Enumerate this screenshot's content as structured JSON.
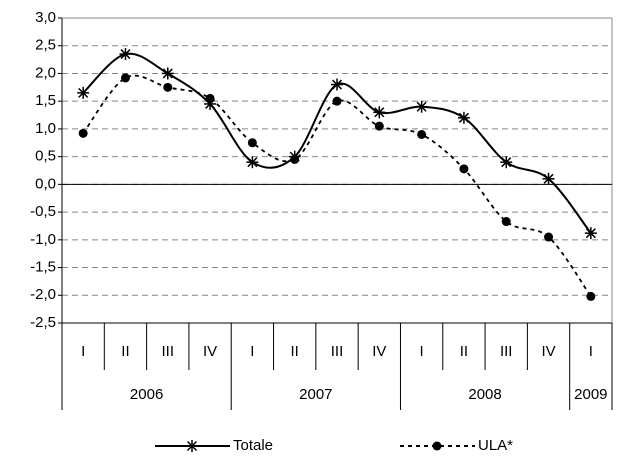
{
  "chart_data": {
    "type": "line",
    "categories": [
      "I",
      "II",
      "III",
      "IV",
      "I",
      "II",
      "III",
      "IV",
      "I",
      "II",
      "III",
      "IV",
      "I"
    ],
    "years": [
      "2006",
      null,
      null,
      null,
      "2007",
      null,
      null,
      null,
      "2008",
      null,
      null,
      null,
      "2009"
    ],
    "series": [
      {
        "name": "Totale",
        "color": "#000000",
        "marker": "star",
        "dash": false,
        "values": [
          1.65,
          2.35,
          2.0,
          1.45,
          0.4,
          0.5,
          1.8,
          1.3,
          1.4,
          1.2,
          0.4,
          0.1,
          -0.88
        ]
      },
      {
        "name": "ULA*",
        "color": "#000000",
        "marker": "circle",
        "dash": true,
        "values": [
          0.92,
          1.92,
          1.75,
          1.55,
          0.75,
          0.45,
          1.5,
          1.05,
          0.9,
          0.28,
          -0.67,
          -0.95,
          -2.02
        ]
      }
    ],
    "ylim": [
      -2.5,
      3.0
    ],
    "yticks": [
      {
        "value": -2.5,
        "label": "-2,5"
      },
      {
        "value": -2.0,
        "label": "-2,0"
      },
      {
        "value": -1.5,
        "label": "-1,5"
      },
      {
        "value": -1.0,
        "label": "-1,0"
      },
      {
        "value": -0.5,
        "label": "-0,5"
      },
      {
        "value": 0,
        "label": "0,0"
      },
      {
        "value": 0.5,
        "label": "0,5"
      },
      {
        "value": 1.0,
        "label": "1,0"
      },
      {
        "value": 1.5,
        "label": "1,5"
      },
      {
        "value": 2.0,
        "label": "2,0"
      },
      {
        "value": 2.5,
        "label": "2,5"
      },
      {
        "value": 3.0,
        "label": "3,0"
      }
    ],
    "grid": true,
    "legend": "bottom"
  }
}
